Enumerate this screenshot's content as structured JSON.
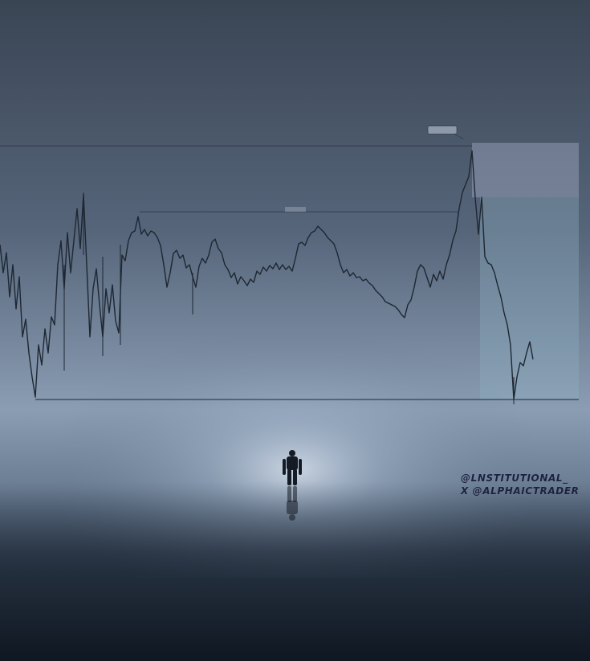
{
  "scene": {
    "description_free": true
  },
  "chart_labels": {
    "upper_level_label": "",
    "mid_level_label": ""
  },
  "watermark": {
    "line1": "@LNSTITUTIONAL_",
    "line2": "X @ALPHAICTRADER"
  },
  "colors": {
    "sky_top": "#3a4554",
    "horizon_glow": "#c9d6e6",
    "floor_dark": "#141c28",
    "price_line": "#1e2733",
    "zone_upper": "#b7bdd6",
    "zone_lower": "#8fb3c4",
    "watermark": "#1c2140"
  }
}
